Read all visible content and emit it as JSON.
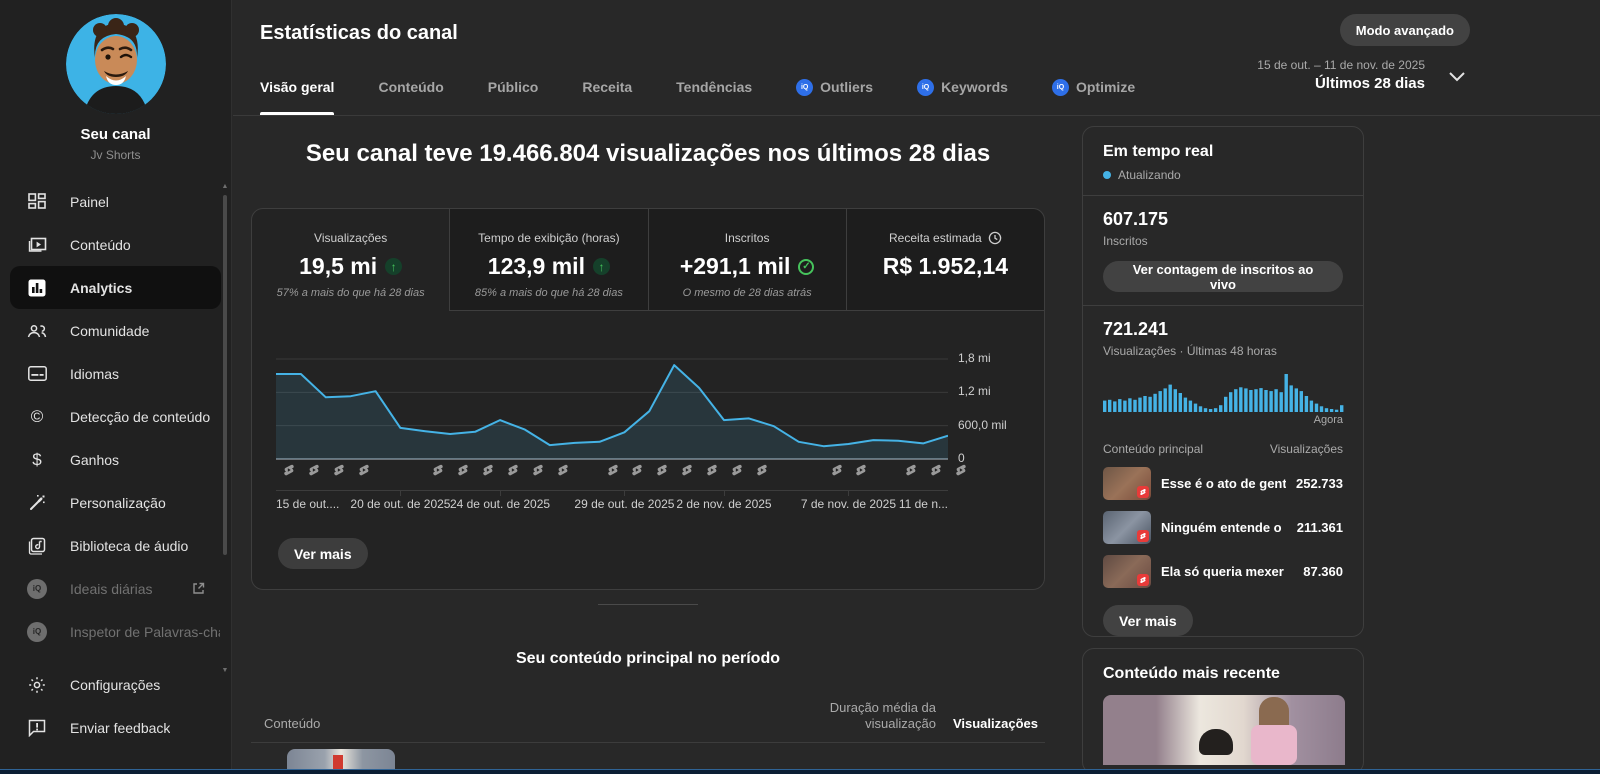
{
  "colors": {
    "accent_cyan": "#45b3e6",
    "positive_green": "#46c35c",
    "badge_red": "#e83b39",
    "background": "#282828",
    "card_background": "#232323"
  },
  "sidebar": {
    "channel_name": "Seu canal",
    "channel_handle": "Jv Shorts",
    "items": [
      {
        "label": "Painel",
        "icon": "dashboard-icon",
        "state": "normal"
      },
      {
        "label": "Conteúdo",
        "icon": "content-icon",
        "state": "normal"
      },
      {
        "label": "Analytics",
        "icon": "analytics-icon",
        "state": "active"
      },
      {
        "label": "Comunidade",
        "icon": "community-icon",
        "state": "normal"
      },
      {
        "label": "Idiomas",
        "icon": "subtitles-icon",
        "state": "normal"
      },
      {
        "label": "Detecção de conteúdo",
        "icon": "copyright-icon",
        "state": "normal"
      },
      {
        "label": "Ganhos",
        "icon": "dollar-icon",
        "state": "normal"
      },
      {
        "label": "Personalização",
        "icon": "wand-icon",
        "state": "normal"
      },
      {
        "label": "Biblioteca de áudio",
        "icon": "audio-library-icon",
        "state": "normal"
      },
      {
        "label": "Ideais diárias",
        "icon": "vidiq-icon",
        "state": "disabled"
      },
      {
        "label": "Inspetor de Palavras-chav",
        "icon": "vidiq-icon",
        "state": "disabled"
      },
      {
        "label": "Configurações",
        "icon": "settings-icon",
        "state": "normal"
      },
      {
        "label": "Enviar feedback",
        "icon": "feedback-icon",
        "state": "normal"
      }
    ]
  },
  "header": {
    "title": "Estatísticas do canal",
    "advanced_mode_label": "Modo avançado",
    "date_range": "15 de out. – 11 de nov. de 2025",
    "period": "Últimos 28 dias",
    "tabs": [
      {
        "label": "Visão geral",
        "active": true,
        "icon": null
      },
      {
        "label": "Conteúdo",
        "active": false,
        "icon": null
      },
      {
        "label": "Público",
        "active": false,
        "icon": null
      },
      {
        "label": "Receita",
        "active": false,
        "icon": null
      },
      {
        "label": "Tendências",
        "active": false,
        "icon": null
      },
      {
        "label": "Outliers",
        "active": false,
        "icon": "iq-badge-icon"
      },
      {
        "label": "Keywords",
        "active": false,
        "icon": "iq-badge-icon"
      },
      {
        "label": "Optimize",
        "active": false,
        "icon": "iq-badge-icon"
      }
    ],
    "iq_badge_text": "iQ"
  },
  "main": {
    "headline": "Seu canal teve 19.466.804 visualizações nos últimos 28 dias",
    "stat_cards": [
      {
        "label": "Visualizações",
        "value": "19,5 mi",
        "delta": "57% a mais do que há 28 dias",
        "indicator": "up"
      },
      {
        "label": "Tempo de exibição (horas)",
        "value": "123,9 mil",
        "delta": "85% a mais do que há 28 dias",
        "indicator": "up"
      },
      {
        "label": "Inscritos",
        "value": "+291,1 mil",
        "delta": "O mesmo de 28 dias atrás",
        "indicator": "same"
      },
      {
        "label": "Receita estimada",
        "value": "R$ 1.952,14",
        "delta": "",
        "indicator": "clock"
      }
    ],
    "ver_mais_label": "Ver mais",
    "section_title": "Seu conteúdo principal no período",
    "table_columns": {
      "content": "Conteúdo",
      "duration": "Duração média da visualização",
      "views": "Visualizações"
    }
  },
  "chart_data": [
    {
      "type": "line",
      "title": "Visualizações nos últimos 28 dias",
      "ylabel": "Visualizações",
      "unit": "milhões de visualizações",
      "ylim": [
        0,
        1.8
      ],
      "y_ticks": [
        "1,8 mi",
        "1,2 mi",
        "600,0 mil",
        "0"
      ],
      "y_tick_values": [
        1.8,
        1.2,
        0.6,
        0
      ],
      "values": [
        1.53,
        1.53,
        1.11,
        1.13,
        1.22,
        0.56,
        0.5,
        0.45,
        0.49,
        0.7,
        0.53,
        0.25,
        0.29,
        0.31,
        0.48,
        0.86,
        1.69,
        1.28,
        0.7,
        0.73,
        0.59,
        0.31,
        0.23,
        0.27,
        0.34,
        0.33,
        0.28,
        0.42
      ],
      "x_tick_labels": [
        {
          "day": 0,
          "label": "15 de out....",
          "align": "left"
        },
        {
          "day": 5,
          "label": "20 de out. de 2025",
          "align": "center"
        },
        {
          "day": 9,
          "label": "24 de out. de 2025",
          "align": "center"
        },
        {
          "day": 14,
          "label": "29 de out. de 2025",
          "align": "center"
        },
        {
          "day": 18,
          "label": "2 de nov. de 2025",
          "align": "center"
        },
        {
          "day": 23,
          "label": "7 de nov. de 2025",
          "align": "center"
        },
        {
          "day": 27,
          "label": "11 de n...",
          "align": "right"
        }
      ],
      "shorts_marker_days": [
        0,
        1,
        2,
        3,
        6,
        7,
        8,
        9,
        10,
        11,
        13,
        14,
        15,
        16,
        17,
        18,
        19,
        22,
        23,
        25,
        26,
        27
      ],
      "grid": true,
      "legend": "none"
    },
    {
      "type": "bar",
      "title": "Visualizações · Últimas 48 horas",
      "unit": "relative hourly views (no axis shown)",
      "x_end_label": "Agora",
      "values": [
        0.3,
        0.32,
        0.28,
        0.34,
        0.3,
        0.36,
        0.32,
        0.38,
        0.42,
        0.4,
        0.48,
        0.55,
        0.62,
        0.72,
        0.6,
        0.5,
        0.38,
        0.3,
        0.22,
        0.15,
        0.1,
        0.08,
        0.1,
        0.18,
        0.4,
        0.52,
        0.6,
        0.65,
        0.62,
        0.58,
        0.6,
        0.63,
        0.58,
        0.55,
        0.6,
        0.52,
        1.0,
        0.7,
        0.62,
        0.55,
        0.42,
        0.3,
        0.22,
        0.15,
        0.1,
        0.08,
        0.06,
        0.18
      ]
    }
  ],
  "realtime": {
    "title": "Em tempo real",
    "status": "Atualizando",
    "subscribers_value": "607.175",
    "subscribers_label": "Inscritos",
    "live_count_button": "Ver contagem de inscritos ao vivo",
    "views_value": "721.241",
    "views_label": "Visualizações · Últimas 48 horas",
    "now_label": "Agora",
    "list_header_left": "Conteúdo principal",
    "list_header_right": "Visualizações",
    "items": [
      {
        "title": "Esse é o ato de gentile…",
        "views": "252.733"
      },
      {
        "title": "Ninguém entende o po…",
        "views": "211.361"
      },
      {
        "title": "Ela só queria mexer no …",
        "views": "87.360"
      }
    ],
    "ver_mais_label": "Ver mais"
  },
  "recent": {
    "title": "Conteúdo mais recente"
  }
}
